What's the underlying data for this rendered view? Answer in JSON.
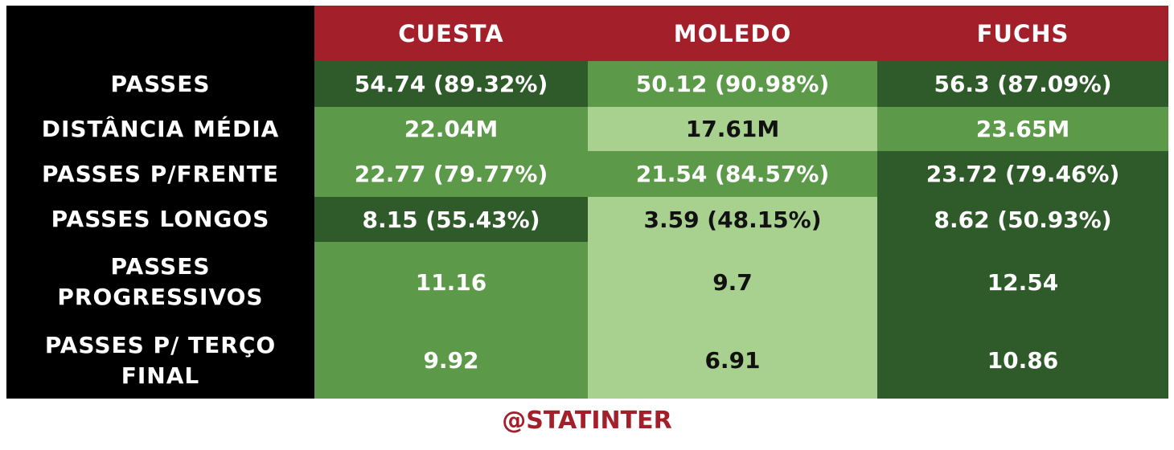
{
  "colors": {
    "header_bg": "#a3202b",
    "label_bg": "#000000",
    "dark_green": "#2f5b2a",
    "medium_green": "#5c9a4a",
    "light_green": "#a8d08f",
    "text_light": "#ffffff",
    "text_dark": "#111111",
    "watermark": "#a3202b"
  },
  "chart_data": {
    "type": "table",
    "columns": [
      "CUESTA",
      "MOLEDO",
      "FUCHS"
    ],
    "rows": [
      {
        "label": "PASSES",
        "cells": [
          {
            "text": "54.74 (89.32%)",
            "shade": "dark"
          },
          {
            "text": "50.12 (90.98%)",
            "shade": "medium"
          },
          {
            "text": "56.3 (87.09%)",
            "shade": "dark"
          }
        ]
      },
      {
        "label": "DISTÂNCIA MÉDIA",
        "cells": [
          {
            "text": "22.04M",
            "shade": "medium"
          },
          {
            "text": "17.61M",
            "shade": "light"
          },
          {
            "text": "23.65M",
            "shade": "medium"
          }
        ]
      },
      {
        "label": "PASSES P/FRENTE",
        "cells": [
          {
            "text": "22.77 (79.77%)",
            "shade": "medium"
          },
          {
            "text": "21.54 (84.57%)",
            "shade": "medium"
          },
          {
            "text": "23.72 (79.46%)",
            "shade": "dark"
          }
        ]
      },
      {
        "label": "PASSES LONGOS",
        "cells": [
          {
            "text": "8.15 (55.43%)",
            "shade": "dark"
          },
          {
            "text": "3.59 (48.15%)",
            "shade": "light"
          },
          {
            "text": "8.62 (50.93%)",
            "shade": "dark"
          }
        ]
      },
      {
        "label": "PASSES PROGRESSIVOS",
        "cells": [
          {
            "text": "11.16",
            "shade": "medium"
          },
          {
            "text": "9.7",
            "shade": "light"
          },
          {
            "text": "12.54",
            "shade": "dark"
          }
        ]
      },
      {
        "label": "PASSES P/ TERÇO FINAL",
        "cells": [
          {
            "text": "9.92",
            "shade": "medium"
          },
          {
            "text": "6.91",
            "shade": "light"
          },
          {
            "text": "10.86",
            "shade": "dark"
          }
        ]
      }
    ]
  },
  "footer": {
    "watermark": "@STATINTER"
  }
}
